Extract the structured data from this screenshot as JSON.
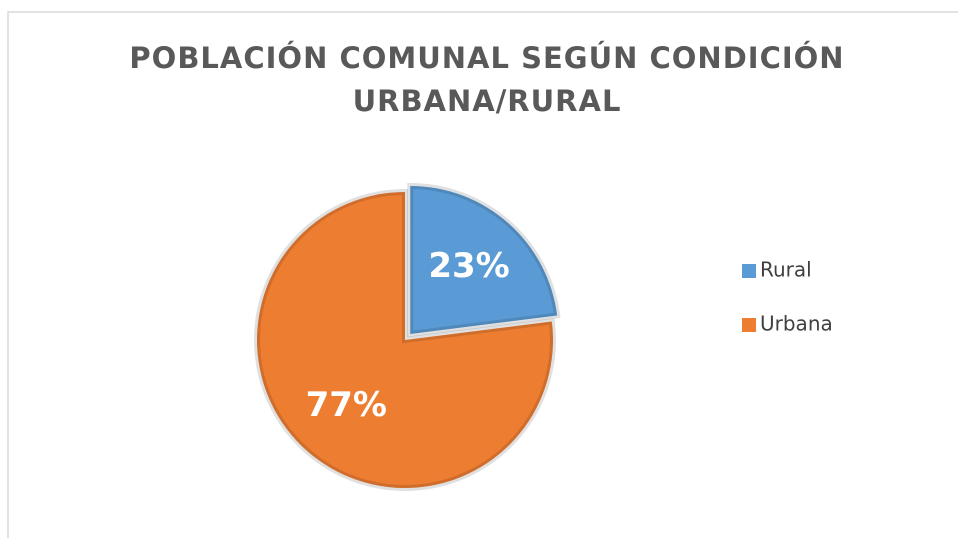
{
  "chart_data": {
    "type": "pie",
    "title": [
      "POBLACIÓN COMUNAL SEGÚN CONDICIÓN",
      "URBANA/RURAL"
    ],
    "categories": [
      "Rural",
      "Urbana"
    ],
    "values": [
      23,
      77
    ],
    "value_labels": [
      "23%",
      "77%"
    ],
    "colors": [
      "#5b9bd5",
      "#ed7d31"
    ],
    "legend": "right"
  }
}
